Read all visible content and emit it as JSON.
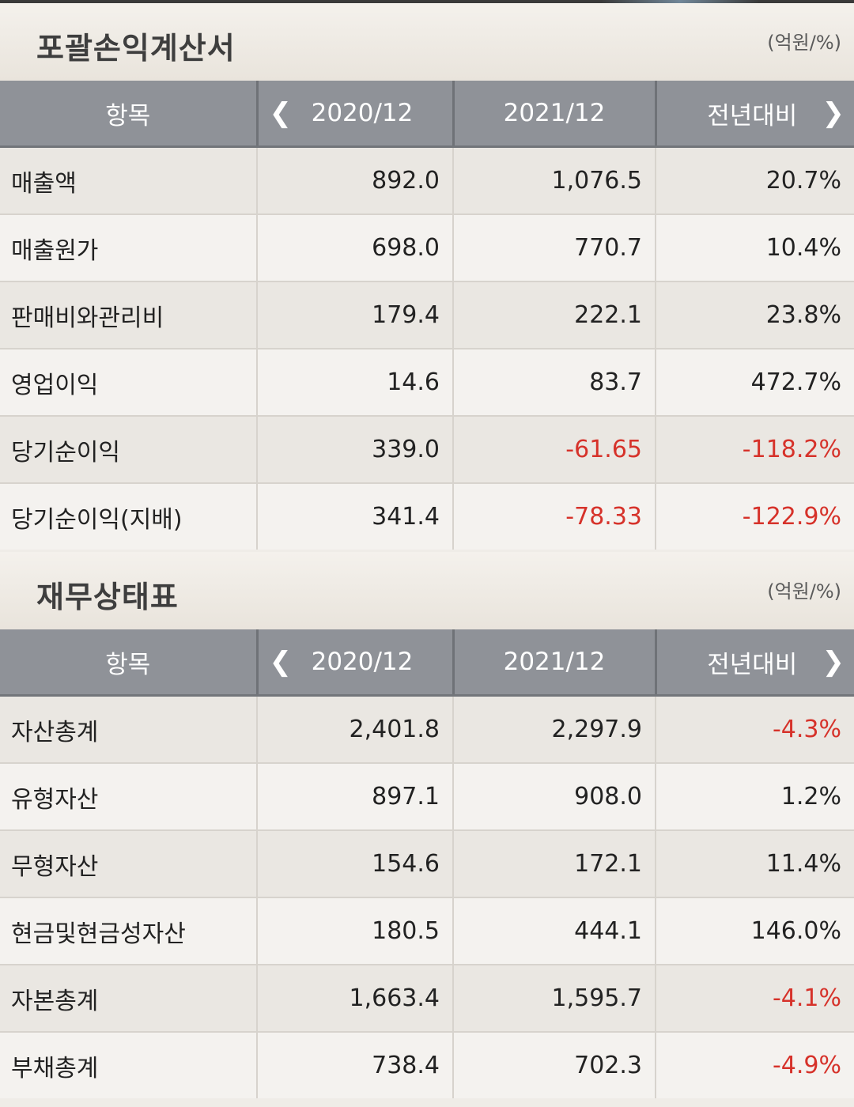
{
  "income": {
    "title": "포괄손익계산서",
    "unit": "(억원/%)",
    "headers": [
      "항목",
      "2020/12",
      "2021/12",
      "전년대비"
    ],
    "rows": [
      {
        "label": "매출액",
        "v2020": "892.0",
        "v2021": "1,076.5",
        "yoy": "20.7%",
        "neg2021": false,
        "negYoy": false
      },
      {
        "label": "매출원가",
        "v2020": "698.0",
        "v2021": "770.7",
        "yoy": "10.4%",
        "neg2021": false,
        "negYoy": false
      },
      {
        "label": "판매비와관리비",
        "v2020": "179.4",
        "v2021": "222.1",
        "yoy": "23.8%",
        "neg2021": false,
        "negYoy": false
      },
      {
        "label": "영업이익",
        "v2020": "14.6",
        "v2021": "83.7",
        "yoy": "472.7%",
        "neg2021": false,
        "negYoy": false
      },
      {
        "label": "당기순이익",
        "v2020": "339.0",
        "v2021": "-61.65",
        "yoy": "-118.2%",
        "neg2021": true,
        "negYoy": true
      },
      {
        "label": "당기순이익(지배)",
        "v2020": "341.4",
        "v2021": "-78.33",
        "yoy": "-122.9%",
        "neg2021": true,
        "negYoy": true
      }
    ]
  },
  "balance": {
    "title": "재무상태표",
    "unit": "(억원/%)",
    "headers": [
      "항목",
      "2020/12",
      "2021/12",
      "전년대비"
    ],
    "rows": [
      {
        "label": "자산총계",
        "v2020": "2,401.8",
        "v2021": "2,297.9",
        "yoy": "-4.3%",
        "neg2021": false,
        "negYoy": true
      },
      {
        "label": "유형자산",
        "v2020": "897.1",
        "v2021": "908.0",
        "yoy": "1.2%",
        "neg2021": false,
        "negYoy": false
      },
      {
        "label": "무형자산",
        "v2020": "154.6",
        "v2021": "172.1",
        "yoy": "11.4%",
        "neg2021": false,
        "negYoy": false
      },
      {
        "label": "현금및현금성자산",
        "v2020": "180.5",
        "v2021": "444.1",
        "yoy": "146.0%",
        "neg2021": false,
        "negYoy": false
      },
      {
        "label": "자본총계",
        "v2020": "1,663.4",
        "v2021": "1,595.7",
        "yoy": "-4.1%",
        "neg2021": false,
        "negYoy": true
      },
      {
        "label": "부채총계",
        "v2020": "738.4",
        "v2021": "702.3",
        "yoy": "-4.9%",
        "neg2021": false,
        "negYoy": true
      }
    ]
  },
  "icons": {
    "prev": "chevron-left-icon",
    "next": "chevron-right-icon"
  },
  "colors": {
    "negative": "#d6322a",
    "header_bg": "#8f9298"
  }
}
